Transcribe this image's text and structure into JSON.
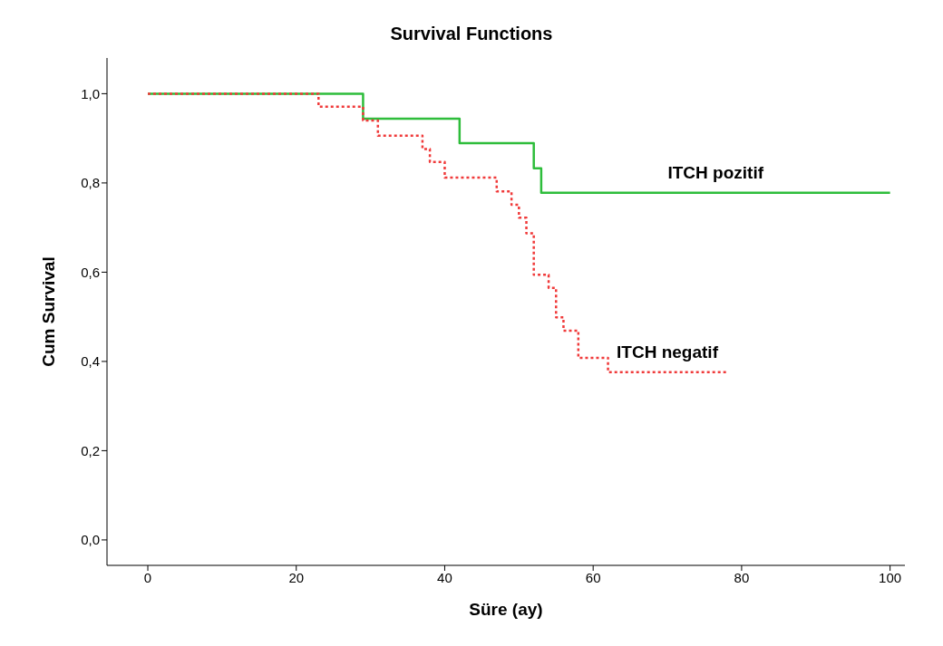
{
  "chart_data": {
    "type": "step",
    "title": "Survival Functions",
    "xlabel": "Süre (ay)",
    "ylabel": "Cum Survival",
    "series": [
      {
        "name": "ITCH pozitif",
        "color": "#2ebd3b",
        "line_style": "solid",
        "x": [
          0,
          29,
          42,
          52,
          53,
          100
        ],
        "values": [
          1.0,
          0.944,
          0.889,
          0.833,
          0.778,
          0.778
        ]
      },
      {
        "name": "ITCH negatif",
        "color": "#f03a3a",
        "line_style": "dotted",
        "x": [
          0,
          23,
          29,
          31,
          37,
          38,
          40,
          47,
          49,
          50,
          51,
          52,
          54,
          55,
          56,
          58,
          62,
          78
        ],
        "values": [
          1.0,
          0.971,
          0.94,
          0.906,
          0.876,
          0.847,
          0.812,
          0.781,
          0.751,
          0.722,
          0.687,
          0.594,
          0.565,
          0.499,
          0.469,
          0.408,
          0.376,
          0.376
        ]
      }
    ],
    "xlim": [
      -5.5,
      102
    ],
    "xticks": [
      0,
      20,
      40,
      60,
      80,
      100
    ],
    "ylim": [
      -0.057,
      1.08
    ],
    "yticks": [
      {
        "value": 0,
        "label": "0,0"
      },
      {
        "value": 0.2,
        "label": "0,2"
      },
      {
        "value": 0.4,
        "label": "0,4"
      },
      {
        "value": 0.6,
        "label": "0,6"
      },
      {
        "value": 0.8,
        "label": "0,8"
      },
      {
        "value": 1.0,
        "label": "1,0"
      }
    ],
    "grid": false,
    "legend": false,
    "marker": "none"
  }
}
